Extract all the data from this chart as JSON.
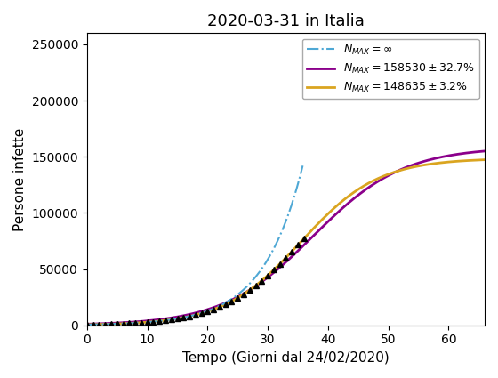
{
  "title": "2020-03-31 in Italia",
  "xlabel": "Tempo (Giorni dal 24/02/2020)",
  "ylabel": "Persone infette",
  "xlim": [
    0,
    66
  ],
  "ylim": [
    0,
    260000
  ],
  "yticks": [
    0,
    50000,
    100000,
    150000,
    200000,
    250000
  ],
  "xticks": [
    0,
    10,
    20,
    30,
    40,
    50,
    60
  ],
  "logistic1_Nmax": 158530,
  "logistic1_k": 0.133,
  "logistic1_t0": 37.5,
  "logistic1_color": "#8B008B",
  "logistic2_Nmax": 148635,
  "logistic2_k": 0.155,
  "logistic2_t0": 35.5,
  "logistic2_color": "#DAA520",
  "expo_color": "#4FA8D5",
  "expo_A": 155.0,
  "expo_k": 0.197,
  "expo_t_end": 35.8,
  "data_days": 36,
  "legend_inf": "$N_{MAX} = \\infty$",
  "legend_1": "$N_{MAX} = 158530 \\pm 32.7\\%$",
  "legend_2": "$N_{MAX} = 148635 \\pm 3.2\\%$"
}
